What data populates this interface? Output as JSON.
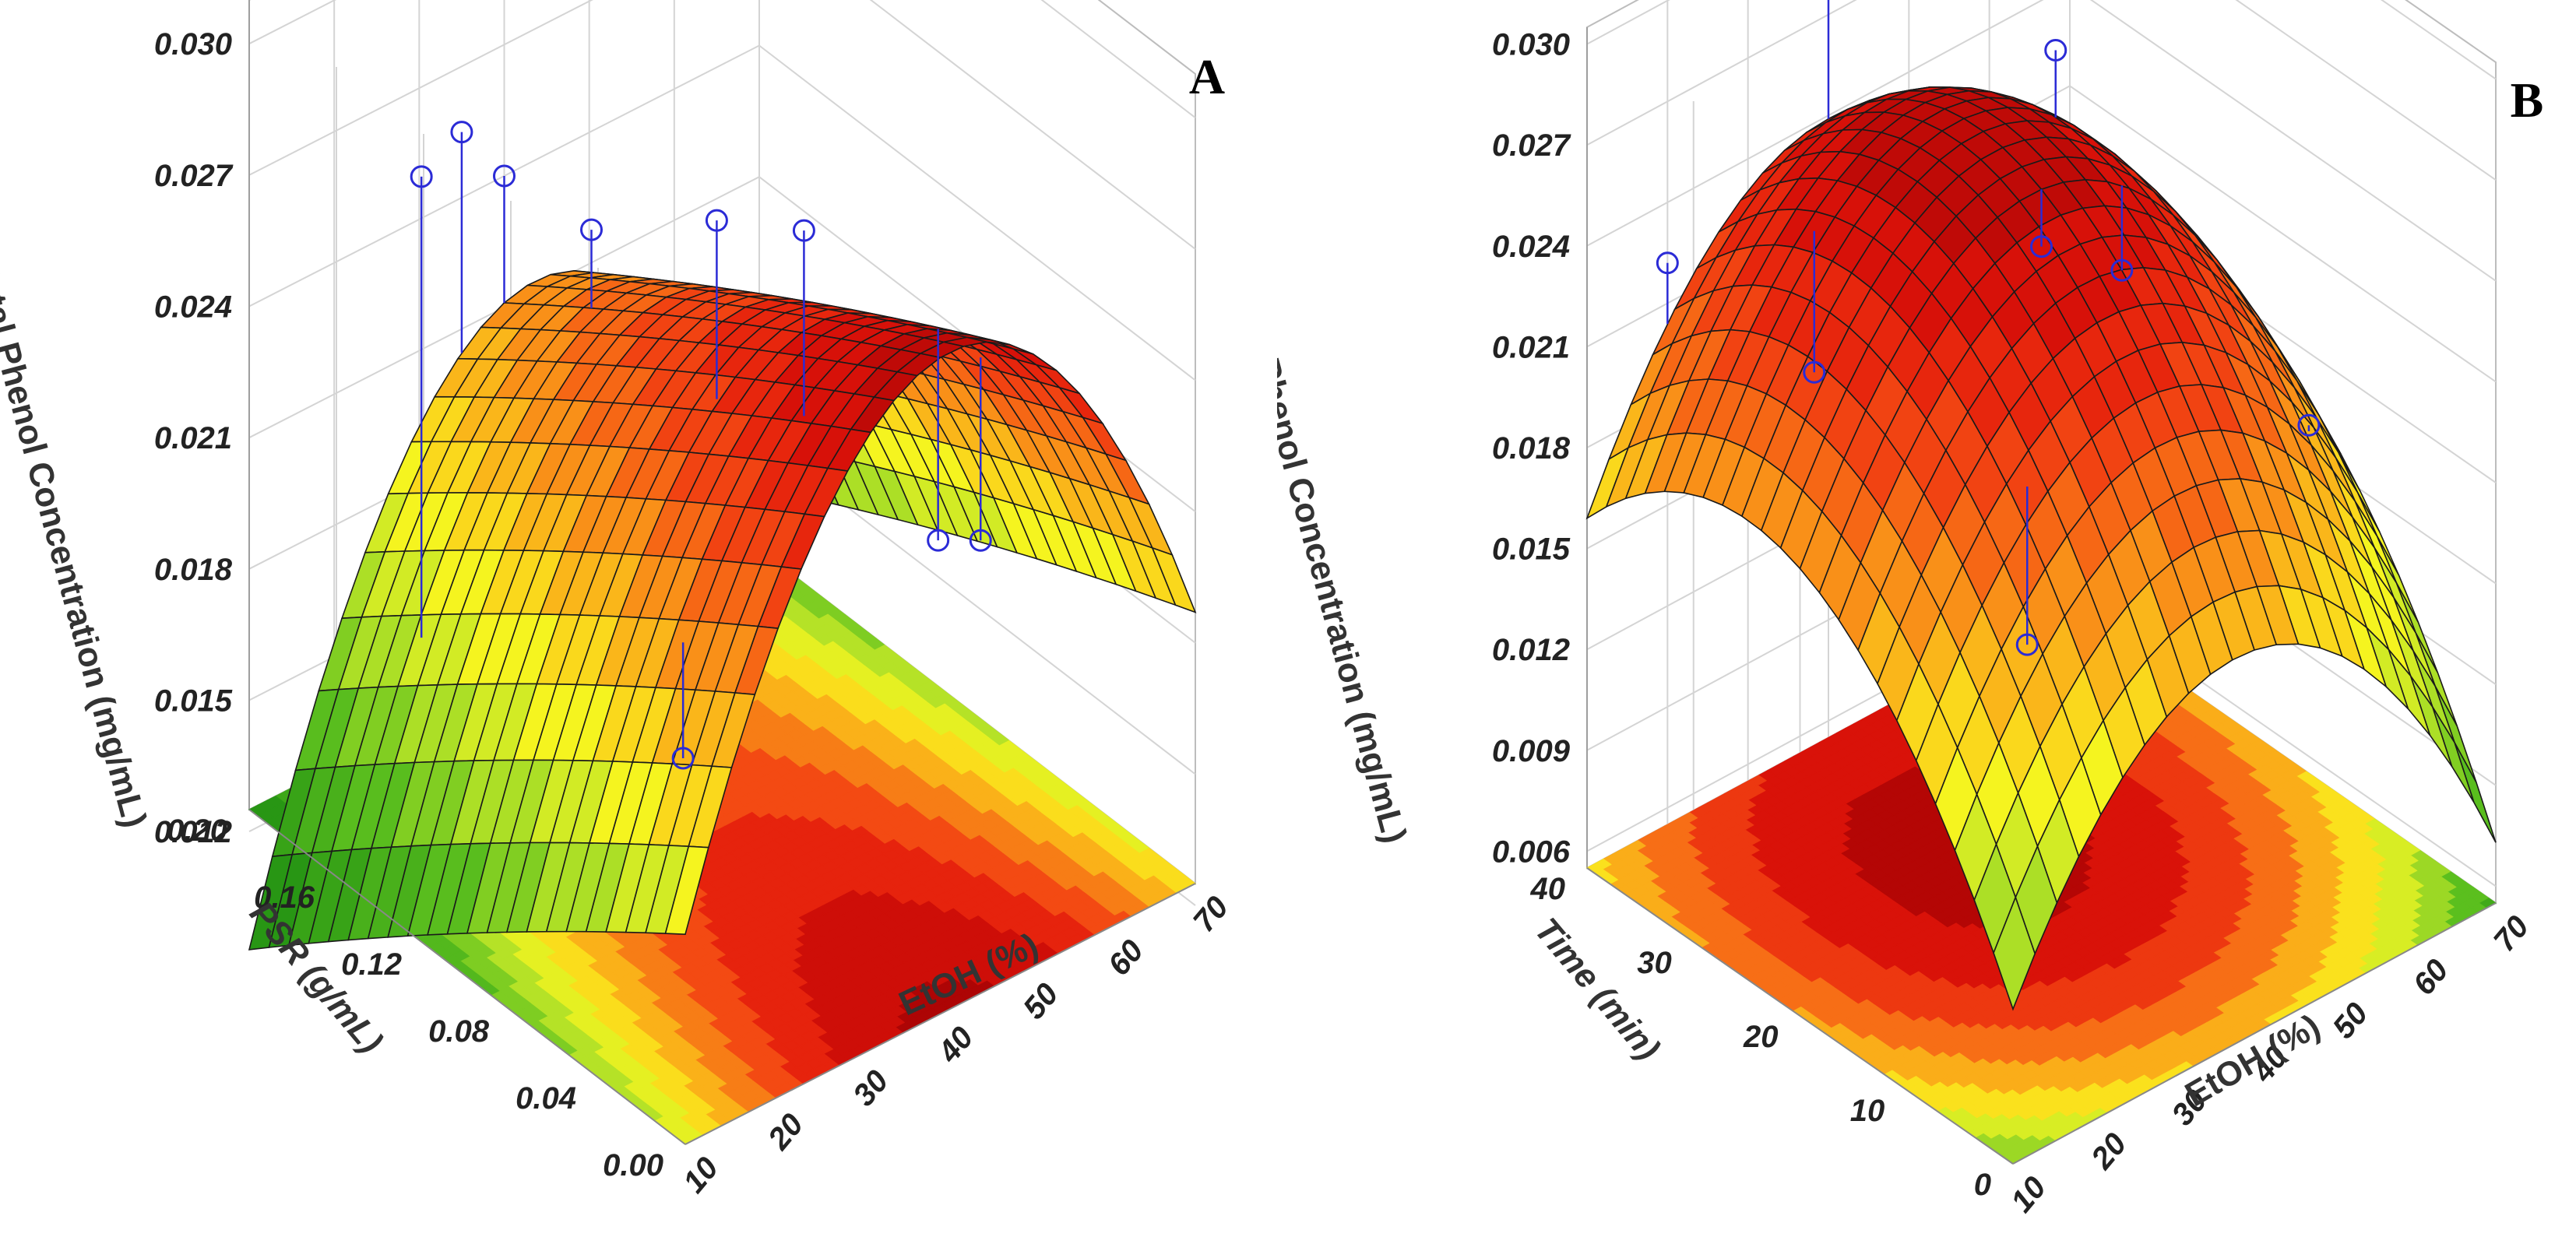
{
  "chart_data": [
    {
      "panel": "A",
      "type": "surface3d",
      "title": "",
      "zlabel": "Total Phenol Concentration (mg/mL)",
      "xlabel": "EtOH (%)",
      "ylabel": "PSR (g/mL)",
      "xlim": [
        10,
        70
      ],
      "ylim": [
        0.0,
        0.2
      ],
      "zlim": [
        0.01,
        0.03
      ],
      "x_ticks": [
        "10",
        "20",
        "30",
        "40",
        "50",
        "60",
        "70"
      ],
      "y_ticks": [
        "0.00",
        "0.04",
        "0.08",
        "0.12",
        "0.16",
        "0.20"
      ],
      "z_ticks": [
        "0.012",
        "0.015",
        "0.018",
        "0.021",
        "0.024",
        "0.027",
        "0.030"
      ],
      "surface": {
        "form": "quadratic",
        "x_center": 40,
        "x_halfwidth": 30,
        "y_center": 0.1,
        "y_halfwidth": 0.1,
        "b0": 0.0245,
        "bx": 0.0015,
        "by": -0.0032,
        "bxx": -0.0095,
        "byy": -0.0002,
        "bxy": 0.0008
      },
      "experimental_points": [
        {
          "x": 20,
          "y": 0.16,
          "z": 0.0275
        },
        {
          "x": 35,
          "y": 0.2,
          "z": 0.0255
        },
        {
          "x": 40,
          "y": 0.2,
          "z": 0.024
        },
        {
          "x": 40,
          "y": 0.16,
          "z": 0.0243
        },
        {
          "x": 65,
          "y": 0.16,
          "z": 0.0218
        },
        {
          "x": 50,
          "y": 0.04,
          "z": 0.0208
        },
        {
          "x": 55,
          "y": 0.04,
          "z": 0.0203
        },
        {
          "x": 65,
          "y": 0.2,
          "z": 0.0205
        },
        {
          "x": 20,
          "y": 0.04,
          "z": 0.0188
        }
      ]
    },
    {
      "panel": "B",
      "type": "surface3d",
      "title": "",
      "zlabel": "Total Phenol Concentration (mg/mL)",
      "xlabel": "EtOH (%)",
      "ylabel": "Time (min)",
      "xlim": [
        10,
        70
      ],
      "ylim": [
        0,
        40
      ],
      "zlim": [
        0.004,
        0.03
      ],
      "x_ticks": [
        "10",
        "20",
        "30",
        "40",
        "50",
        "60",
        "70"
      ],
      "y_ticks": [
        "0",
        "10",
        "20",
        "30",
        "40"
      ],
      "z_ticks": [
        "0.006",
        "0.009",
        "0.012",
        "0.015",
        "0.018",
        "0.021",
        "0.024",
        "0.027",
        "0.030"
      ],
      "surface": {
        "form": "quadratic",
        "x_center": 40,
        "x_halfwidth": 30,
        "y_center": 20,
        "y_halfwidth": 20,
        "b0": 0.0262,
        "bx": -0.0008,
        "by": 0.0035,
        "bxx": -0.0082,
        "byy": -0.0058,
        "bxy": 0.0006
      },
      "experimental_points": [
        {
          "x": 40,
          "y": 40,
          "z": 0.0302
        },
        {
          "x": 55,
          "y": 30,
          "z": 0.0262
        },
        {
          "x": 40,
          "y": 20,
          "z": 0.0245
        },
        {
          "x": 50,
          "y": 20,
          "z": 0.0225
        },
        {
          "x": 25,
          "y": 30,
          "z": 0.0205
        },
        {
          "x": 20,
          "y": 40,
          "z": 0.0222
        },
        {
          "x": 60,
          "y": 10,
          "z": 0.0188
        },
        {
          "x": 25,
          "y": 10,
          "z": 0.0168
        }
      ]
    }
  ]
}
